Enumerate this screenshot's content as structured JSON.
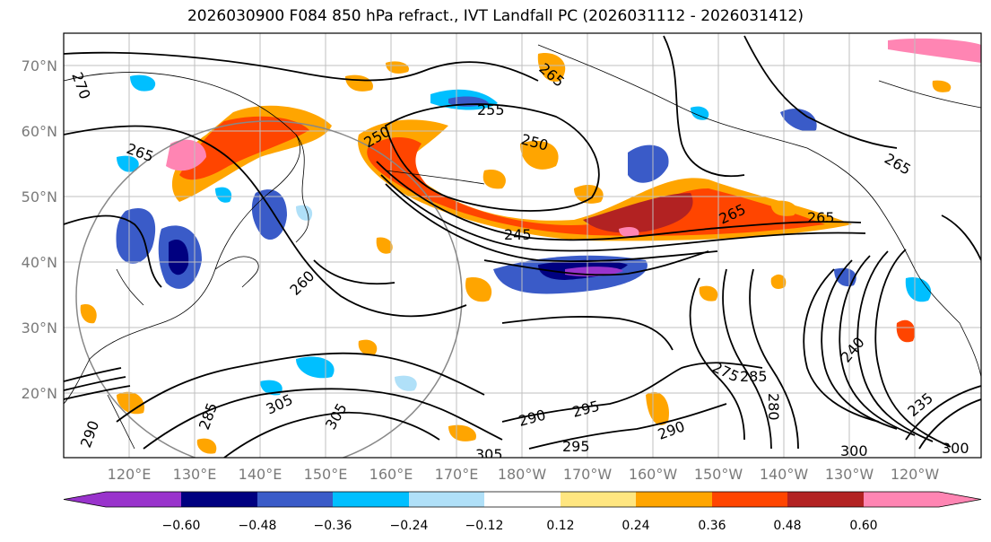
{
  "title": "2026030900 F084 850 hPa refract., IVT Landfall PC (2026031112 - 2026031412)",
  "lat_labels": [
    "70°N",
    "60°N",
    "50°N",
    "40°N",
    "30°N",
    "20°N"
  ],
  "lon_labels": [
    "120°E",
    "130°E",
    "140°E",
    "150°E",
    "160°E",
    "170°E",
    "180°W",
    "170°W",
    "160°W",
    "150°W",
    "140°W",
    "130°W",
    "120°W"
  ],
  "colorbar": {
    "colors": [
      "#9933cc",
      "#000080",
      "#3a5bc8",
      "#00bfff",
      "#b0e0f8",
      "#ffffff",
      "#ffe680",
      "#ffa500",
      "#ff4500",
      "#b22222",
      "#ff85b3"
    ],
    "tick_labels": [
      "−0.60",
      "−0.48",
      "−0.36",
      "−0.24",
      "−0.12",
      "0.12",
      "0.24",
      "0.36",
      "0.48",
      "0.60"
    ]
  },
  "contour_labels": [
    "270",
    "265",
    "265",
    "265",
    "265",
    "265",
    "260",
    "255",
    "250",
    "250",
    "245",
    "240",
    "235",
    "275",
    "285",
    "290",
    "290",
    "290",
    "295",
    "295",
    "300",
    "300",
    "305",
    "305",
    "305",
    "285",
    "280"
  ]
}
